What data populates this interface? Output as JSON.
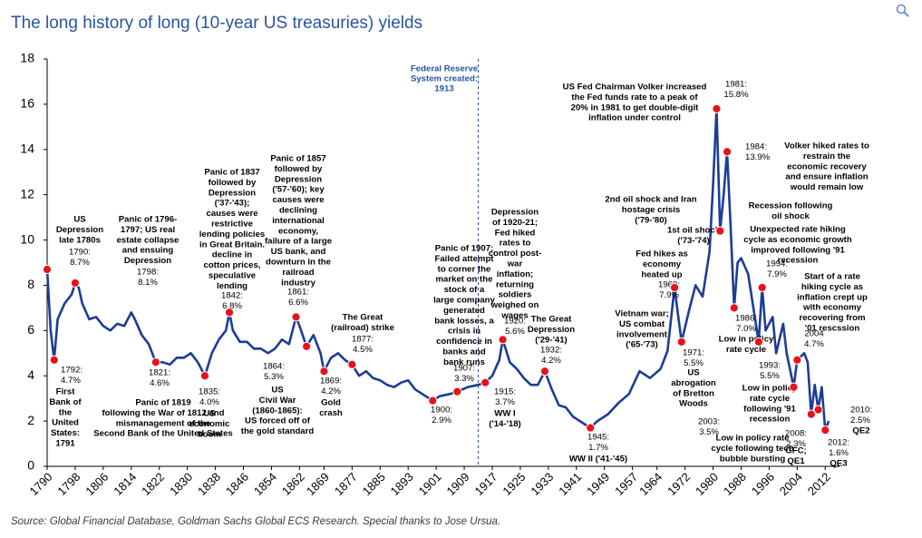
{
  "chart_data": {
    "type": "line",
    "title": "The long history of long (10-year US treasuries) yields",
    "source": "Source: Global Financial Database, Goldman Sachs Global ECS Research. Special thanks to Jose Ursua.",
    "xlim": [
      1790,
      2014
    ],
    "ylim": [
      0,
      18
    ],
    "yticks": [
      0,
      2,
      4,
      6,
      8,
      10,
      12,
      14,
      16,
      18
    ],
    "xticks": [
      1790,
      1798,
      1806,
      1814,
      1822,
      1830,
      1838,
      1846,
      1854,
      1862,
      1869,
      1877,
      1885,
      1893,
      1901,
      1909,
      1917,
      1925,
      1933,
      1941,
      1949,
      1957,
      1964,
      1972,
      1980,
      1988,
      1996,
      2004,
      2012
    ],
    "series": [
      {
        "color": "#1c3c96",
        "x": [
          1790,
          1791,
          1792,
          1793,
          1795,
          1797,
          1798,
          1799,
          1800,
          1802,
          1804,
          1806,
          1808,
          1810,
          1812,
          1814,
          1815,
          1817,
          1819,
          1821,
          1823,
          1825,
          1827,
          1829,
          1831,
          1833,
          1835,
          1837,
          1839,
          1841,
          1842,
          1843,
          1845,
          1847,
          1849,
          1851,
          1853,
          1855,
          1857,
          1859,
          1861,
          1862,
          1864,
          1866,
          1868,
          1869,
          1871,
          1873,
          1875,
          1877,
          1879,
          1881,
          1883,
          1885,
          1887,
          1889,
          1891,
          1893,
          1895,
          1897,
          1900,
          1902,
          1905,
          1907,
          1910,
          1913,
          1915,
          1917,
          1919,
          1920,
          1922,
          1924,
          1926,
          1928,
          1930,
          1932,
          1934,
          1936,
          1938,
          1940,
          1942,
          1945,
          1947,
          1950,
          1953,
          1956,
          1959,
          1962,
          1965,
          1967,
          1969,
          1971,
          1973,
          1975,
          1977,
          1979,
          1980,
          1981,
          1982,
          1983,
          1984,
          1985,
          1986,
          1987,
          1988,
          1990,
          1991,
          1993,
          1994,
          1995,
          1997,
          1998,
          2000,
          2001,
          2003,
          2004,
          2006,
          2007,
          2008,
          2009,
          2010,
          2011,
          2012,
          2013
        ],
        "values": [
          8.7,
          6.0,
          4.7,
          6.5,
          7.2,
          7.6,
          8.1,
          7.9,
          7.2,
          6.5,
          6.6,
          6.2,
          6.0,
          6.3,
          6.2,
          6.8,
          6.5,
          5.8,
          5.4,
          4.6,
          4.6,
          4.5,
          4.8,
          4.8,
          5.0,
          4.6,
          4.0,
          5.0,
          5.6,
          6.0,
          6.8,
          6.0,
          5.5,
          5.5,
          5.2,
          5.2,
          5.0,
          5.2,
          5.6,
          5.4,
          6.6,
          6.2,
          5.3,
          5.8,
          5.0,
          4.2,
          4.8,
          5.0,
          4.7,
          4.5,
          4.0,
          4.2,
          3.9,
          3.8,
          3.6,
          3.5,
          3.7,
          3.8,
          3.4,
          3.2,
          2.9,
          3.1,
          3.2,
          3.3,
          3.5,
          3.6,
          3.7,
          4.0,
          4.7,
          5.6,
          4.6,
          4.3,
          3.9,
          3.6,
          3.6,
          4.2,
          3.4,
          2.7,
          2.6,
          2.2,
          2.0,
          1.7,
          2.0,
          2.3,
          2.8,
          3.2,
          4.2,
          3.9,
          4.3,
          5.1,
          7.9,
          5.5,
          6.8,
          8.0,
          7.5,
          9.5,
          12.5,
          15.8,
          10.4,
          12.0,
          13.9,
          10.6,
          7.0,
          9.0,
          9.2,
          8.5,
          7.5,
          5.5,
          7.9,
          6.0,
          6.6,
          5.0,
          6.3,
          5.0,
          3.5,
          4.7,
          5.0,
          4.6,
          2.3,
          3.6,
          2.5,
          3.5,
          1.6,
          2.0
        ]
      }
    ],
    "fed_reserve": {
      "x": 1913,
      "note": [
        "Federal Reserve",
        "System created:",
        "1913"
      ]
    },
    "annotations": [
      {
        "x": 1790,
        "y": 8.7,
        "label": [
          "1790:",
          "8.7%"
        ],
        "note": [
          "US",
          "Depression",
          "late 1780s"
        ]
      },
      {
        "x": 1792,
        "y": 4.7,
        "label": [
          "1792:",
          "4.7%"
        ],
        "note": [
          "First",
          "Bank of",
          "the",
          "United",
          "States:",
          "1791"
        ]
      },
      {
        "x": 1798,
        "y": 8.1,
        "label": [
          "1798:",
          "8.1%"
        ],
        "note": [
          "Panic of 1796-",
          "1797; US real",
          "estate collapse",
          "and ensuing",
          "Depression"
        ]
      },
      {
        "x": 1821,
        "y": 4.6,
        "label": [
          "1821:",
          "4.6%"
        ],
        "note": [
          "Panic of 1819",
          "following the War of 1812 and",
          "mismanagement of the",
          "Second Bank of the United States"
        ]
      },
      {
        "x": 1835,
        "y": 4.0,
        "label": [
          "1835:",
          "4.0%"
        ],
        "note": [
          "US",
          "economic",
          "boom"
        ]
      },
      {
        "x": 1842,
        "y": 6.8,
        "label": [
          "1842:",
          "6.8%"
        ],
        "note": [
          "Panic of 1837",
          "followed by",
          "Depression",
          "('37-'43);",
          "causes were",
          "restrictive",
          "lending policies",
          "in Great Britain.",
          "decline in",
          "cotton prices,",
          "speculative",
          "lending"
        ]
      },
      {
        "x": 1861,
        "y": 6.6,
        "label": [
          "1861:",
          "6.6%"
        ],
        "note": [
          "Panic of 1857",
          "followed by",
          "Depression",
          "('57-'60); key",
          "causes were",
          "declining",
          "international",
          "economy,",
          "failure of a large",
          "US bank, and",
          "downturn in the",
          "railroad",
          "industry"
        ]
      },
      {
        "x": 1864,
        "y": 5.3,
        "label": [
          "1864:",
          "5.3%"
        ],
        "note": [
          "US",
          "Civil War",
          "(1860-1865):",
          "US forced off of",
          "the gold standard"
        ]
      },
      {
        "x": 1869,
        "y": 4.2,
        "label": [
          "1869:",
          "4.2%"
        ],
        "note": [
          "Gold",
          "crash"
        ]
      },
      {
        "x": 1877,
        "y": 4.5,
        "label": [
          "1877:",
          "4.5%"
        ],
        "note": [
          "The Great",
          "(railroad) strike"
        ]
      },
      {
        "x": 1900,
        "y": 2.9,
        "label": [
          "1900:",
          "2.9%"
        ]
      },
      {
        "x": 1907,
        "y": 3.3,
        "label": [
          "1907:",
          "3.3%"
        ],
        "note": [
          "Panic of 1907;",
          "Failed attempt",
          "to corner the",
          "market on the",
          "stock of a",
          "large company",
          "generated",
          "bank losses, a",
          "crisis in",
          "confidence in",
          "banks and",
          "bank runs"
        ]
      },
      {
        "x": 1915,
        "y": 3.7,
        "label": [
          "1915:",
          "3.7%"
        ],
        "note": [
          "WW I",
          "('14-'18)"
        ]
      },
      {
        "x": 1920,
        "y": 5.6,
        "label": [
          "1920:",
          "5.6%"
        ],
        "note": [
          "Depression",
          "of 1920-21;",
          "Fed hiked",
          "rates to",
          "control post-",
          "war",
          "inflation;",
          "returning",
          "soldiers",
          "weighed on",
          "wages"
        ]
      },
      {
        "x": 1932,
        "y": 4.2,
        "label": [
          "1932:",
          "4.2%"
        ],
        "note": [
          "The Great",
          "Depression",
          "('29-'41)"
        ]
      },
      {
        "x": 1945,
        "y": 1.7,
        "label": [
          "1945:",
          "1.7%"
        ],
        "note": [
          "WW II ('41-'45)"
        ]
      },
      {
        "note": [
          "Vietnam  war;",
          "US combat",
          "involvement",
          "('65-'73)"
        ]
      },
      {
        "x": 1969,
        "y": 7.9,
        "label": [
          "1969:",
          "7.9%"
        ],
        "note": [
          "Fed hikes as",
          "economy",
          "heated up"
        ]
      },
      {
        "x": 1971,
        "y": 5.5,
        "label": [
          "1971:",
          "5.5%"
        ],
        "note": [
          "US",
          "abrogation",
          "of Bretton",
          "Woods"
        ]
      },
      {
        "note": [
          "1st oil shock",
          "('73-'74)"
        ]
      },
      {
        "note": [
          "2nd oil shock and Iran",
          "hostage crisis",
          "('79-'80)"
        ]
      },
      {
        "x": 1981,
        "y": 15.8,
        "label": [
          "1981:",
          "15.8%"
        ],
        "note": [
          "US Fed Chairman Volker increased",
          "the Fed funds rate to a peak of",
          "20% in 1981 to get double-digit",
          "inflation under control"
        ]
      },
      {
        "x": 1984,
        "y": 13.9,
        "label": [
          "1984:",
          "13.9%"
        ],
        "note": [
          "Volker hiked rates to",
          "restrain the",
          "economic recovery",
          "and ensure inflation",
          "would remain low"
        ]
      },
      {
        "x": 1982,
        "y": 10.4,
        "note": [
          "Recession following",
          "oil shock"
        ]
      },
      {
        "x": 1986,
        "y": 7.0,
        "label": [
          "1986:",
          "7.0%"
        ],
        "note": [
          "Low in policy",
          "rate cycle"
        ]
      },
      {
        "x": 1994,
        "y": 7.9,
        "label": [
          "1994:",
          "7.9%"
        ],
        "note": [
          "Unexpected rate hiking",
          "cycle as economic growth",
          "improved following '91",
          "recession"
        ]
      },
      {
        "x": 1993,
        "y": 5.5,
        "label": [
          "1993:",
          "5.5%"
        ],
        "note": [
          "Low in policy",
          "rate cycle",
          "following '91",
          "recession"
        ]
      },
      {
        "x": 2004,
        "y": 4.7,
        "label": [
          "2004",
          "4.7%"
        ],
        "note": [
          "Start of a rate",
          "hiking cycle as",
          "inflation crept up",
          "with economy",
          "recovering from",
          "'01 rescssion"
        ]
      },
      {
        "x": 2003,
        "y": 3.5,
        "label": [
          "2003:",
          "3.5%"
        ],
        "note": [
          "Low in policy rate",
          "cycle following tech",
          "bubble bursting"
        ]
      },
      {
        "x": 2008,
        "y": 2.3,
        "label": [
          "2008:",
          "2.3%"
        ],
        "note": [
          "GFC;",
          "QE1"
        ]
      },
      {
        "x": 2010,
        "y": 2.5,
        "label": [
          "2010:",
          "2.5%"
        ],
        "note": [
          "QE2"
        ]
      },
      {
        "x": 2012,
        "y": 1.6,
        "label": [
          "2012:",
          "1.6%"
        ],
        "note": [
          "QE3"
        ]
      }
    ]
  }
}
